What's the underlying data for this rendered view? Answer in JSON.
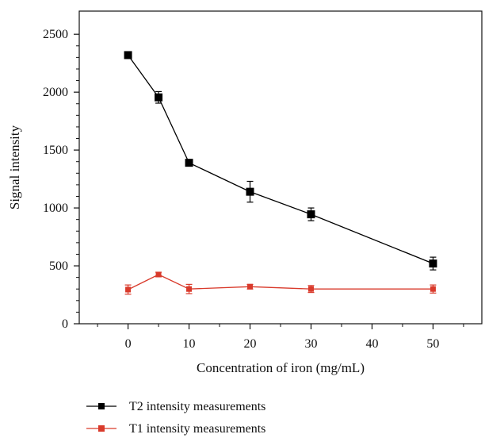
{
  "chart_data": {
    "type": "line",
    "title": "",
    "xlabel": "Concentration of iron (mg/mL)",
    "ylabel": "Signal intensity",
    "xlim": [
      -8,
      58
    ],
    "ylim": [
      0,
      2700
    ],
    "x_ticks": [
      0,
      10,
      20,
      30,
      40,
      50
    ],
    "y_ticks": [
      0,
      500,
      1000,
      1500,
      2000,
      2500
    ],
    "x_tick_labels": [
      "0",
      "10",
      "20",
      "30",
      "40",
      "50"
    ],
    "y_tick_labels": [
      "0",
      "500",
      "1000",
      "1500",
      "2000",
      "2500"
    ],
    "grid": false,
    "legend_position": "bottom",
    "series": [
      {
        "name": "T2 intensity measurements",
        "color": "#000000",
        "marker": "square",
        "x": [
          0,
          5,
          10,
          20,
          30,
          50
        ],
        "y": [
          2320,
          1955,
          1390,
          1140,
          945,
          520
        ],
        "error": [
          15,
          50,
          25,
          90,
          55,
          55
        ]
      },
      {
        "name": "T1 intensity measurements",
        "color": "#d93a2b",
        "marker": "square",
        "x": [
          0,
          5,
          10,
          20,
          30,
          50
        ],
        "y": [
          295,
          425,
          300,
          320,
          300,
          300
        ],
        "error": [
          40,
          20,
          40,
          20,
          30,
          35
        ]
      }
    ]
  }
}
